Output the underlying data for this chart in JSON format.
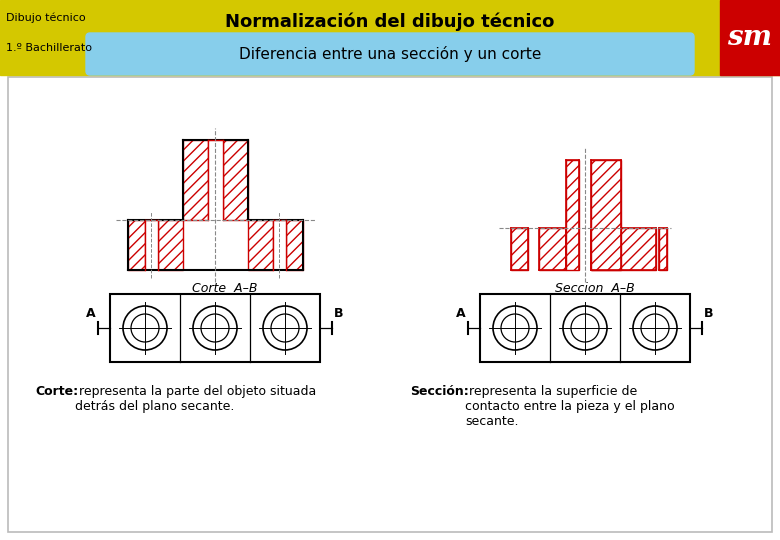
{
  "title": "Normalización del dibujo técnico",
  "subtitle": "Diferencia entre una sección y un corte",
  "header_left_line1": "Dibujo técnico",
  "header_left_line2": "1.º Bachillerato",
  "bg_color": "#f0f0f0",
  "header_bg": "#d4c800",
  "subtitle_bg": "#87ceeb",
  "sm_bg": "#cc0000",
  "sm_text": "sm",
  "corte_label": "Corte  A–B",
  "seccion_label": "Seccion  A–B",
  "corte_desc_bold": "Corte:",
  "corte_desc": " representa la parte del objeto situada\ndetrás del plano secante.",
  "seccion_desc_bold": "Sección:",
  "seccion_desc": " representa la superficie de\ncontacto entre la pieza y el plano\nsecante.",
  "hatch_color": "#cc0000",
  "outline_color": "#000000",
  "dashed_color": "#888888",
  "content_bg": "#ffffff"
}
